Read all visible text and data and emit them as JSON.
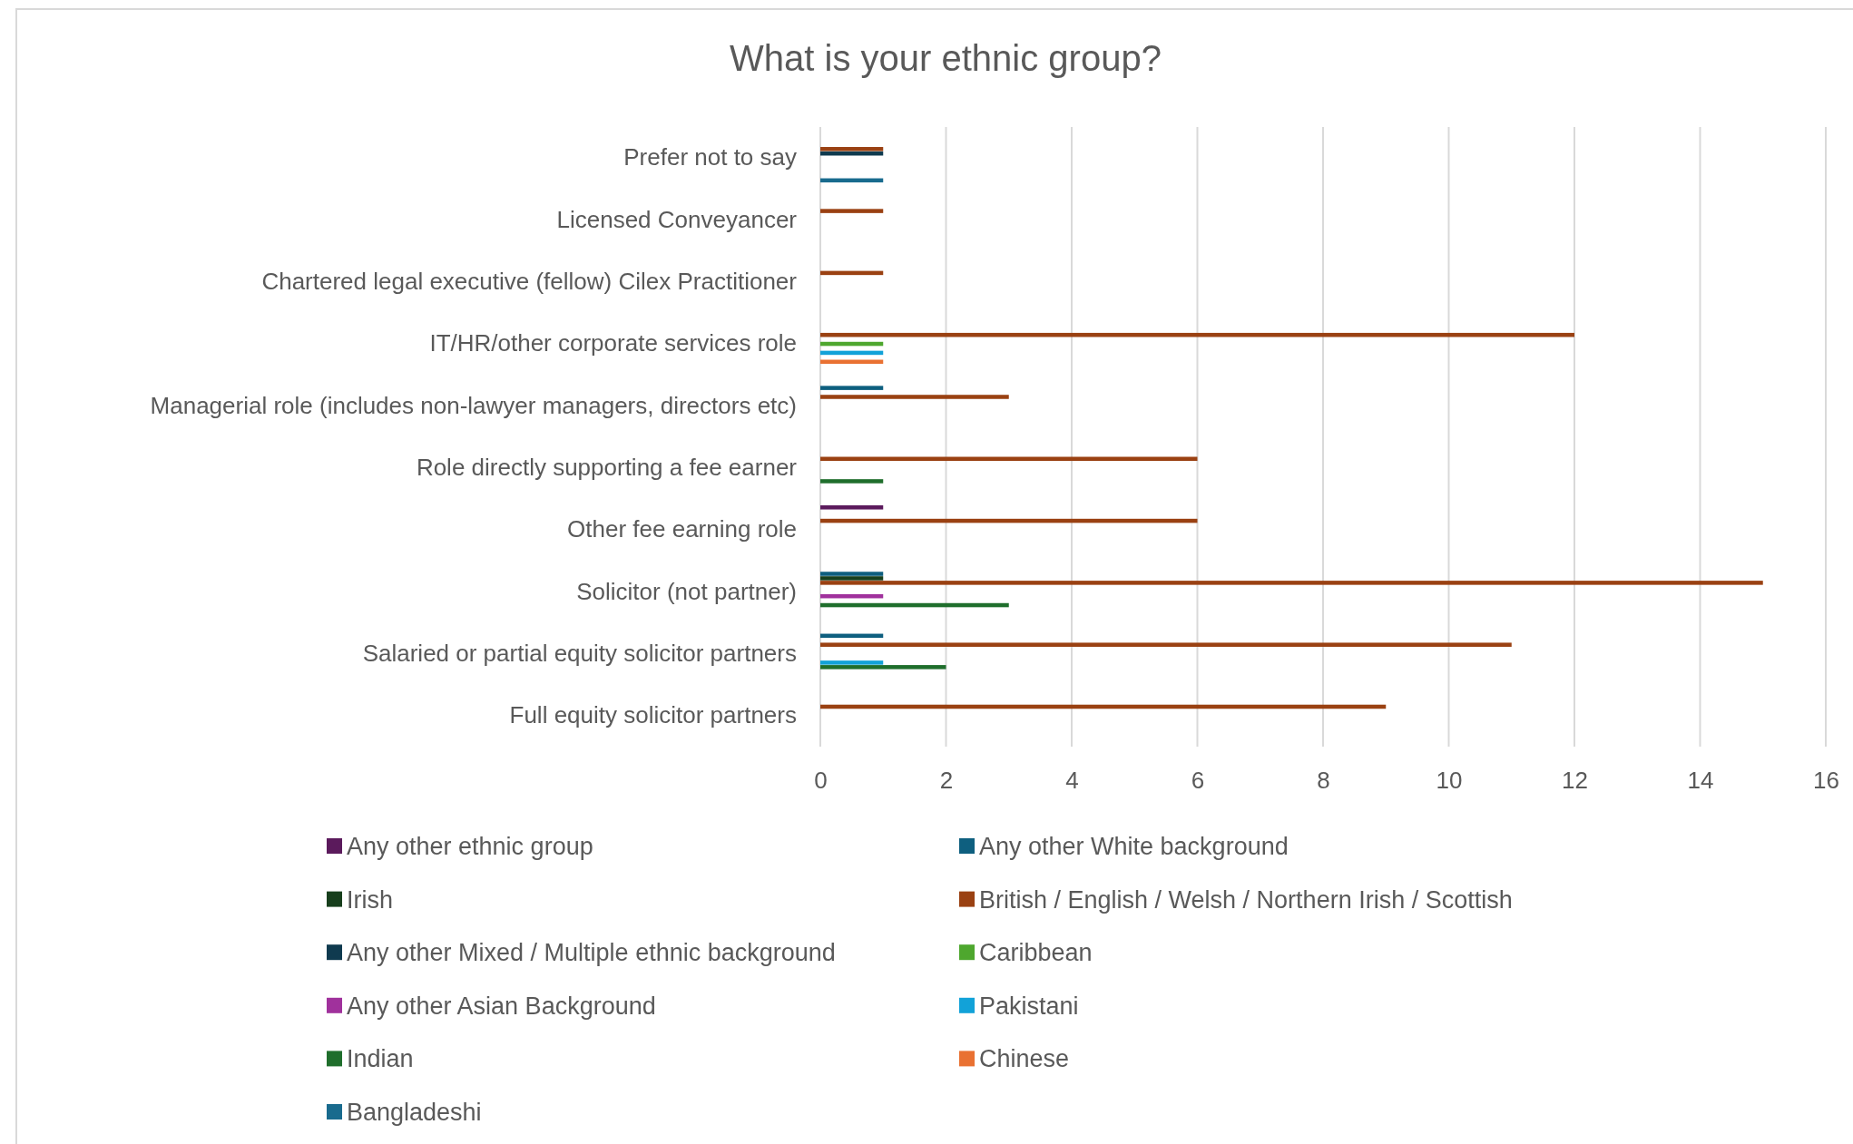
{
  "chart_data": {
    "type": "bar",
    "orientation": "horizontal",
    "title": "What is your ethnic group?",
    "categories": [
      "Prefer not to say",
      "Licensed Conveyancer",
      "Chartered legal executive (fellow) Cilex Practitioner",
      "IT/HR/other corporate services role",
      "Managerial role (includes non-lawyer managers, directors etc)",
      "Role directly supporting a fee earner",
      "Other fee earning role",
      "Solicitor (not partner)",
      "Salaried or partial equity solicitor partners",
      "Full equity solicitor partners"
    ],
    "series": [
      {
        "name": "Any other ethnic group",
        "color": "#5b1a5c",
        "values": [
          null,
          null,
          null,
          null,
          null,
          null,
          1,
          null,
          null,
          null
        ]
      },
      {
        "name": "Any other White background",
        "color": "#0e5f7f",
        "values": [
          null,
          null,
          null,
          null,
          1,
          null,
          null,
          1,
          1,
          null
        ]
      },
      {
        "name": "Irish",
        "color": "#173f1c",
        "values": [
          null,
          null,
          null,
          null,
          null,
          null,
          null,
          1,
          null,
          null
        ]
      },
      {
        "name": "British / English / Welsh / Northern Irish / Scottish",
        "color": "#9a4112",
        "values": [
          1,
          1,
          1,
          12,
          3,
          6,
          6,
          15,
          11,
          9
        ]
      },
      {
        "name": "Any other Mixed / Multiple ethnic background",
        "color": "#0f3a4f",
        "values": [
          1,
          null,
          null,
          null,
          null,
          null,
          null,
          null,
          null,
          null
        ]
      },
      {
        "name": "Caribbean",
        "color": "#4ea72e",
        "values": [
          null,
          null,
          null,
          1,
          null,
          null,
          null,
          null,
          null,
          null
        ]
      },
      {
        "name": "Any other Asian Background",
        "color": "#a0319c",
        "values": [
          null,
          null,
          null,
          null,
          null,
          null,
          null,
          1,
          null,
          null
        ]
      },
      {
        "name": "Pakistani",
        "color": "#12a2d8",
        "values": [
          null,
          null,
          null,
          1,
          null,
          null,
          null,
          null,
          1,
          null
        ]
      },
      {
        "name": "Indian",
        "color": "#1f6e2c",
        "values": [
          null,
          null,
          null,
          null,
          null,
          1,
          null,
          3,
          2,
          null
        ]
      },
      {
        "name": "Chinese",
        "color": "#e97132",
        "values": [
          null,
          null,
          null,
          1,
          null,
          null,
          null,
          null,
          null,
          null
        ]
      },
      {
        "name": "Bangladeshi",
        "color": "#196b8e",
        "values": [
          1,
          null,
          null,
          null,
          null,
          null,
          null,
          null,
          null,
          null
        ]
      }
    ],
    "xlim": [
      0,
      16
    ],
    "xticks": [
      0,
      2,
      4,
      6,
      8,
      10,
      12,
      14,
      16
    ],
    "grid": "x",
    "legend": "bottom"
  }
}
